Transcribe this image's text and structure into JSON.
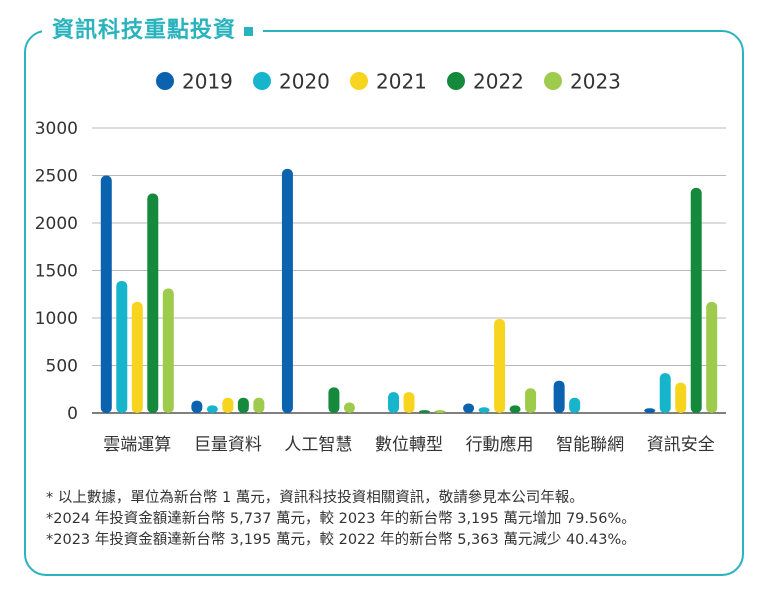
{
  "header": {
    "title": "資訊科技重點投資"
  },
  "chart_data": {
    "type": "bar",
    "categories": [
      "雲端運算",
      "巨量資料",
      "人工智慧",
      "數位轉型",
      "行動應用",
      "智能聯網",
      "資訊安全"
    ],
    "series": [
      {
        "name": "2019",
        "color": "#0b63b0",
        "values": [
          2500,
          130,
          2570,
          0,
          100,
          340,
          50
        ]
      },
      {
        "name": "2020",
        "color": "#16b5cc",
        "values": [
          1390,
          80,
          0,
          220,
          60,
          160,
          420
        ]
      },
      {
        "name": "2021",
        "color": "#f7d51e",
        "values": [
          1170,
          160,
          0,
          220,
          990,
          0,
          320
        ]
      },
      {
        "name": "2022",
        "color": "#168a3c",
        "values": [
          2310,
          160,
          270,
          30,
          80,
          0,
          2370
        ]
      },
      {
        "name": "2023",
        "color": "#9fcb4c",
        "values": [
          1310,
          160,
          110,
          30,
          260,
          0,
          1170
        ]
      }
    ],
    "ylim": [
      0,
      3000
    ],
    "yticks": [
      "0",
      "500",
      "1000",
      "1500",
      "2000",
      "2500",
      "3000"
    ],
    "legend": "top-center",
    "grid": true
  },
  "notes": [
    "* 以上數據，單位為新台幣 1 萬元，資訊科技投資相關資訊，敬請參見本公司年報。",
    "*2024 年投資金額達新台幣 5,737 萬元，較 2023 年的新台幣 3,195 萬元增加 79.56%。",
    "*2023 年投資金額達新台幣 3,195 萬元，較 2022 年的新台幣 5,363 萬元減少 40.43%。"
  ]
}
